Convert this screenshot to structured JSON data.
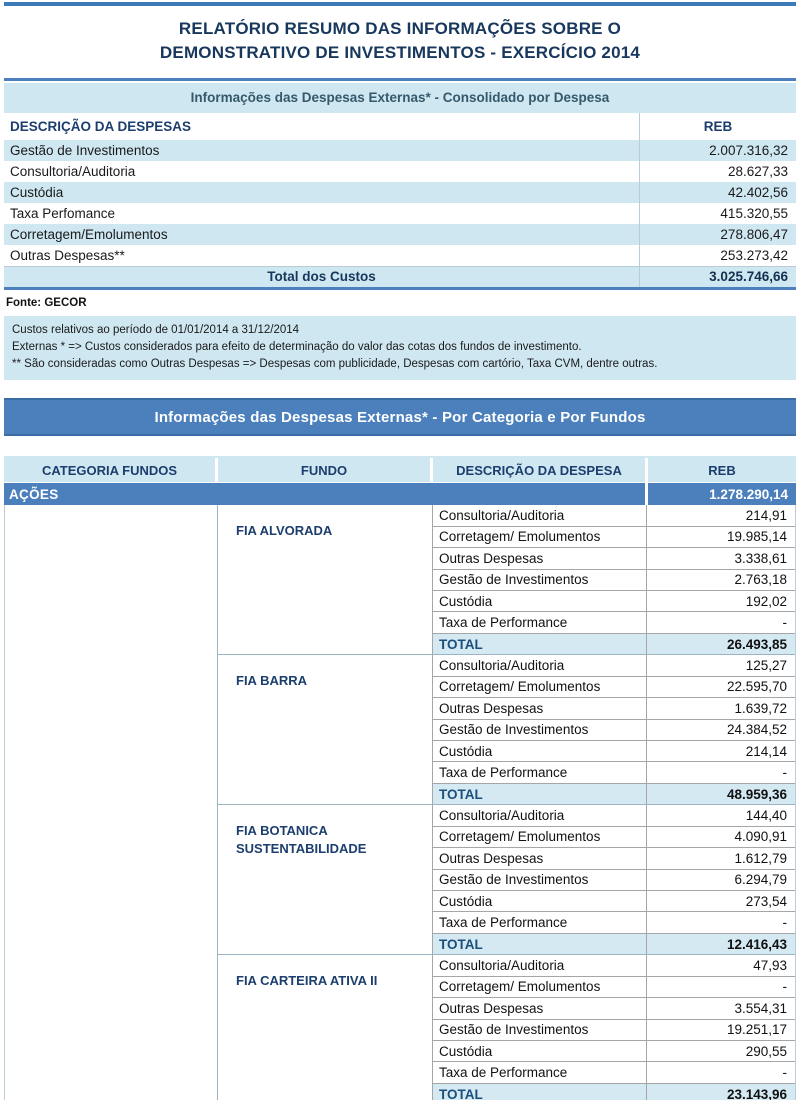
{
  "page": {
    "title_line1": "RELATÓRIO RESUMO DAS INFORMAÇÕES SOBRE O",
    "title_line2": "DEMONSTRATIVO DE INVESTIMENTOS - EXERCÍCIO 2014"
  },
  "colors": {
    "accent_blue": "#4b80bd",
    "light_blue": "#cfe7f1",
    "navy_text": "#1c3e6e",
    "title_navy": "#17375d"
  },
  "table1": {
    "section_title": "Informações das Despesas Externas* - Consolidado por Despesa",
    "col_desc": "DESCRIÇÃO DA DESPESAS",
    "col_reb": "REB",
    "rows": [
      {
        "label": "Gestão de Investimentos",
        "value": "2.007.316,32"
      },
      {
        "label": "Consultoria/Auditoria",
        "value": "28.627,33"
      },
      {
        "label": "Custódia",
        "value": "42.402,56"
      },
      {
        "label": "Taxa Perfomance",
        "value": "415.320,55"
      },
      {
        "label": "Corretagem/Emolumentos",
        "value": "278.806,47"
      },
      {
        "label": "Outras Despesas**",
        "value": "253.273,42"
      }
    ],
    "total_label": "Total dos Custos",
    "total_value": "3.025.746,66"
  },
  "source": "Fonte: GECOR",
  "notes": [
    "Custos relativos ao período de 01/01/2014 a 31/12/2014",
    "Externas * => Custos considerados para efeito de determinação do valor das cotas dos fundos de investimento.",
    "** São consideradas como Outras Despesas  => Despesas com publicidade, Despesas com cartório, Taxa CVM, dentre outras."
  ],
  "table2": {
    "section_title": "Informações das Despesas Externas* - Por Categoria e Por Fundos",
    "headers": [
      "CATEGORIA FUNDOS",
      "FUNDO",
      "DESCRIÇÃO DA DESPESA",
      "REB"
    ],
    "category": {
      "name": "AÇÕES",
      "total": "1.278.290,14"
    },
    "total_label": "TOTAL",
    "funds": [
      {
        "name": "FIA ALVORADA",
        "total": "26.493,85",
        "rows": [
          {
            "label": "Consultoria/Auditoria",
            "value": "214,91"
          },
          {
            "label": "Corretagem/ Emolumentos",
            "value": "19.985,14"
          },
          {
            "label": "Outras Despesas",
            "value": "3.338,61"
          },
          {
            "label": "Gestão de Investimentos",
            "value": "2.763,18"
          },
          {
            "label": "Custódia",
            "value": "192,02"
          },
          {
            "label": "Taxa de Performance",
            "value": "-"
          }
        ]
      },
      {
        "name": "FIA BARRA",
        "total": "48.959,36",
        "rows": [
          {
            "label": "Consultoria/Auditoria",
            "value": "125,27"
          },
          {
            "label": "Corretagem/ Emolumentos",
            "value": "22.595,70"
          },
          {
            "label": "Outras Despesas",
            "value": "1.639,72"
          },
          {
            "label": "Gestão de Investimentos",
            "value": "24.384,52"
          },
          {
            "label": "Custódia",
            "value": "214,14"
          },
          {
            "label": "Taxa de Performance",
            "value": "-"
          }
        ]
      },
      {
        "name": "FIA BOTANICA SUSTENTABILIDADE",
        "total": "12.416,43",
        "rows": [
          {
            "label": "Consultoria/Auditoria",
            "value": "144,40"
          },
          {
            "label": "Corretagem/ Emolumentos",
            "value": "4.090,91"
          },
          {
            "label": "Outras Despesas",
            "value": "1.612,79"
          },
          {
            "label": "Gestão de Investimentos",
            "value": "6.294,79"
          },
          {
            "label": "Custódia",
            "value": "273,54"
          },
          {
            "label": "Taxa de Performance",
            "value": "-"
          }
        ]
      },
      {
        "name": "FIA CARTEIRA ATIVA II",
        "total": "23.143,96",
        "rows": [
          {
            "label": "Consultoria/Auditoria",
            "value": "47,93"
          },
          {
            "label": "Corretagem/ Emolumentos",
            "value": "-"
          },
          {
            "label": "Outras Despesas",
            "value": "3.554,31"
          },
          {
            "label": "Gestão de Investimentos",
            "value": "19.251,17"
          },
          {
            "label": "Custódia",
            "value": "290,55"
          },
          {
            "label": "Taxa de Performance",
            "value": "-"
          }
        ]
      }
    ]
  }
}
